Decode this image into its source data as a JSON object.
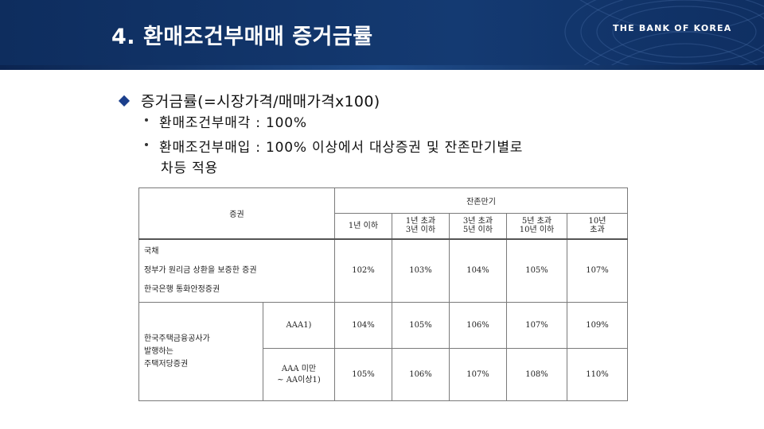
{
  "header": {
    "title": "4. 환매조건부매매 증거금률",
    "brand": "THE BANK OF KOREA"
  },
  "content": {
    "main_bullet": "증거금률(=시장가격/매매가격x100)",
    "sub_bullets": [
      "환매조건부매각 : 100%",
      "환매조건부매입 : 100% 이상에서 대상증권 및 잔존만기별로"
    ],
    "sub_bullet_cont": "차등 적용"
  },
  "table": {
    "header_security": "증권",
    "header_maturity": "잔존만기",
    "maturity_cols": [
      [
        "1년 이하"
      ],
      [
        "1년 초과",
        "3년 이하"
      ],
      [
        "3년 초과",
        "5년 이하"
      ],
      [
        "5년 초과",
        "10년 이하"
      ],
      [
        "10년",
        "초과"
      ]
    ],
    "group1": {
      "lines": [
        "국채",
        "정부가 원리금 상환을 보증한 증권",
        "한국은행 통화안정증권"
      ],
      "values": [
        "102%",
        "103%",
        "104%",
        "105%",
        "107%"
      ]
    },
    "group2": {
      "label_lines": [
        "한국주택금융공사가",
        "발행하는",
        "주택저당증권"
      ],
      "rows": [
        {
          "grade": "AAA1)",
          "values": [
            "104%",
            "105%",
            "106%",
            "107%",
            "109%"
          ]
        },
        {
          "grade_lines": [
            "AAA 미만",
            "~ AA이상1)"
          ],
          "values": [
            "105%",
            "106%",
            "107%",
            "108%",
            "110%"
          ]
        }
      ]
    }
  }
}
